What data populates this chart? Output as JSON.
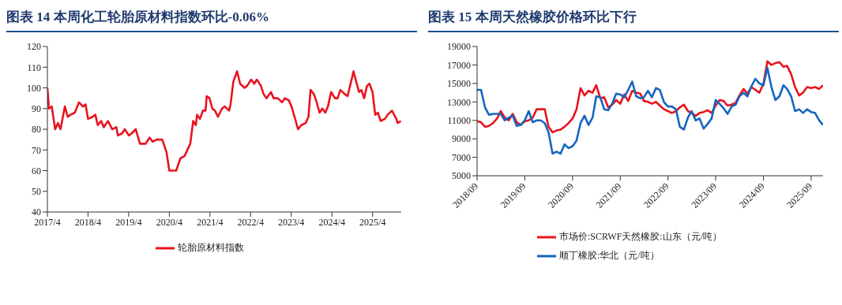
{
  "chart_data": [
    {
      "type": "line",
      "title": "图表 14   本周化工轮胎原材料指数环比-0.06%",
      "legend": "bottom",
      "xlim": [
        "2017-04-01",
        "2025-12-15"
      ],
      "xticks": [
        {
          "value": "2017-04-01",
          "label": "2017/4"
        },
        {
          "value": "2018-04-01",
          "label": "2018/4"
        },
        {
          "value": "2019-04-01",
          "label": "2019/4"
        },
        {
          "value": "2020-04-01",
          "label": "2020/4"
        },
        {
          "value": "2021-04-01",
          "label": "2021/4"
        },
        {
          "value": "2022-04-01",
          "label": "2022/4"
        },
        {
          "value": "2023-04-01",
          "label": "2023/4"
        },
        {
          "value": "2024-04-01",
          "label": "2024/4"
        },
        {
          "value": "2025-04-01",
          "label": "2025/4"
        }
      ],
      "ylim": [
        40,
        120
      ],
      "yticks": [
        40,
        50,
        60,
        70,
        80,
        90,
        100,
        110,
        120
      ],
      "series": [
        {
          "name": "轮胎原材料指数",
          "color": "#e8141e",
          "x": [
            "2017-04-01",
            "2017-04-15",
            "2017-05-10",
            "2017-06-10",
            "2017-07-05",
            "2017-07-28",
            "2017-09-05",
            "2017-10-01",
            "2017-10-25",
            "2017-12-03",
            "2018-01-10",
            "2018-02-15",
            "2018-03-10",
            "2018-04-01",
            "2018-05-12",
            "2018-06-06",
            "2018-06-28",
            "2018-07-28",
            "2018-08-21",
            "2018-09-28",
            "2018-11-04",
            "2018-12-12",
            "2018-12-25",
            "2019-02-01",
            "2019-02-25",
            "2019-04-03",
            "2019-04-28",
            "2019-06-04",
            "2019-07-12",
            "2019-09-01",
            "2019-10-06",
            "2019-11-02",
            "2019-12-10",
            "2020-01-28",
            "2020-03-06",
            "2020-04-01",
            "2020-06-01",
            "2020-07-10",
            "2020-08-15",
            "2020-10-06",
            "2020-11-01",
            "2020-11-25",
            "2020-12-06",
            "2021-01-01",
            "2021-01-28",
            "2021-02-20",
            "2021-03-03",
            "2021-03-28",
            "2021-04-22",
            "2021-05-16",
            "2021-06-12",
            "2021-07-18",
            "2021-08-12",
            "2021-09-20",
            "2021-10-03",
            "2021-10-28",
            "2021-12-01",
            "2021-12-28",
            "2022-02-06",
            "2022-03-01",
            "2022-04-06",
            "2022-05-03",
            "2022-05-27",
            "2022-07-03",
            "2022-07-27",
            "2022-08-22",
            "2022-10-01",
            "2022-10-25",
            "2022-12-01",
            "2023-01-09",
            "2023-02-03",
            "2023-03-10",
            "2023-04-04",
            "2023-05-12",
            "2023-06-01",
            "2023-07-01",
            "2023-08-09",
            "2023-09-03",
            "2023-09-22",
            "2023-10-22",
            "2023-11-16",
            "2023-12-12",
            "2024-01-06",
            "2024-02-01",
            "2024-02-25",
            "2024-03-25",
            "2024-04-28",
            "2024-05-22",
            "2024-06-16",
            "2024-07-25",
            "2024-08-19",
            "2024-09-25",
            "2024-10-12",
            "2024-11-15",
            "2024-12-01",
            "2024-12-22",
            "2025-01-16",
            "2025-02-10",
            "2025-03-04",
            "2025-04-01",
            "2025-04-25",
            "2025-05-19",
            "2025-06-13",
            "2025-07-21",
            "2025-08-15",
            "2025-09-22",
            "2025-11-01",
            "2025-11-12",
            "2025-12-12"
          ],
          "values": [
            100,
            90,
            91,
            80,
            83,
            80,
            91,
            86,
            87,
            88,
            93,
            91,
            92,
            85,
            86,
            87,
            82,
            84,
            81,
            84,
            80,
            81,
            77,
            78,
            80,
            77,
            78,
            80,
            73,
            73,
            76,
            74,
            75,
            75,
            69,
            60,
            60,
            66,
            67,
            73,
            84,
            82,
            87,
            85,
            89,
            89,
            96,
            95,
            90,
            89,
            86,
            90,
            91,
            89,
            92,
            103,
            108,
            102,
            100,
            101,
            104,
            102,
            104,
            101,
            97,
            95,
            98,
            95,
            95,
            93,
            95,
            94,
            91,
            84,
            80,
            82,
            83,
            86,
            99,
            97,
            93,
            88,
            90,
            88,
            91,
            98,
            95,
            95,
            99,
            97,
            96,
            104,
            108,
            101,
            98,
            99,
            95,
            101,
            102,
            98,
            87,
            88,
            84,
            85,
            87,
            89,
            85,
            83,
            84
          ]
        }
      ]
    },
    {
      "type": "line",
      "title": "图表 15   本周天然橡胶价格环比下行",
      "legend": "bottom",
      "x": [
        "2018-09",
        "2018-10",
        "2018-11",
        "2018-12",
        "2019-01",
        "2019-02",
        "2019-03",
        "2019-04",
        "2019-05",
        "2019-06",
        "2019-07",
        "2019-08",
        "2019-09",
        "2019-10",
        "2019-11",
        "2019-12",
        "2020-01",
        "2020-02",
        "2020-03",
        "2020-04",
        "2020-05",
        "2020-06",
        "2020-07",
        "2020-08",
        "2020-09",
        "2020-10",
        "2020-11",
        "2020-12",
        "2021-01",
        "2021-02",
        "2021-03",
        "2021-04",
        "2021-05",
        "2021-06",
        "2021-07",
        "2021-08",
        "2021-09",
        "2021-10",
        "2021-11",
        "2021-12",
        "2022-01",
        "2022-02",
        "2022-03",
        "2022-04",
        "2022-05",
        "2022-06",
        "2022-07",
        "2022-08",
        "2022-09",
        "2022-10",
        "2022-11",
        "2022-12",
        "2023-01",
        "2023-02",
        "2023-03",
        "2023-04",
        "2023-05",
        "2023-06",
        "2023-07",
        "2023-08",
        "2023-09",
        "2023-10",
        "2023-11",
        "2023-12",
        "2024-01",
        "2024-02",
        "2024-03",
        "2024-04",
        "2024-05",
        "2024-06",
        "2024-07",
        "2024-08",
        "2024-09",
        "2024-10",
        "2024-11",
        "2024-12",
        "2025-01",
        "2025-02",
        "2025-03",
        "2025-04",
        "2025-05",
        "2025-06",
        "2025-07",
        "2025-08",
        "2025-09",
        "2025-10",
        "2025-11",
        "2025-12"
      ],
      "xlim": [
        "2018-09",
        "2025-12"
      ],
      "xticks": [
        {
          "value": "2018-09",
          "label": "2018/09"
        },
        {
          "value": "2019-09",
          "label": "2019/09"
        },
        {
          "value": "2020-09",
          "label": "2020/09"
        },
        {
          "value": "2021-09",
          "label": "2021/09"
        },
        {
          "value": "2022-09",
          "label": "2022/09"
        },
        {
          "value": "2023-09",
          "label": "2023/09"
        },
        {
          "value": "2024-09",
          "label": "2024/09"
        },
        {
          "value": "2025-09",
          "label": "2025/09"
        }
      ],
      "ylim": [
        5000,
        19000
      ],
      "yticks": [
        5000,
        7000,
        9000,
        11000,
        13000,
        15000,
        17000,
        19000
      ],
      "series": [
        {
          "name": "市场价:SCRWF天然橡胶:山东（元/吨）",
          "color": "#e8141e",
          "values": [
            10900,
            10800,
            10300,
            10400,
            10700,
            11200,
            12000,
            11300,
            11000,
            11700,
            10800,
            10500,
            10900,
            11000,
            11300,
            12200,
            12200,
            12200,
            10300,
            9700,
            9900,
            10000,
            10300,
            10700,
            11200,
            12200,
            14500,
            13700,
            14200,
            14000,
            14800,
            13400,
            13500,
            12400,
            12700,
            13200,
            12800,
            13800,
            13100,
            14200,
            14000,
            13900,
            13100,
            13000,
            12800,
            13000,
            12600,
            12200,
            12000,
            11800,
            12000,
            12400,
            12700,
            12000,
            11800,
            11500,
            11800,
            11900,
            12100,
            11800,
            12600,
            13200,
            13100,
            12600,
            12700,
            12900,
            13700,
            14400,
            13900,
            14600,
            14300,
            14000,
            15000,
            17400,
            17000,
            17200,
            17300,
            16800,
            16900,
            16000,
            14600,
            13700,
            14000,
            14600,
            14500,
            14600,
            14400,
            14800
          ]
        },
        {
          "name": "顺丁橡胶:华北（元/吨）",
          "color": "#1565c0",
          "values": [
            14300,
            14300,
            12400,
            11600,
            11700,
            11700,
            11700,
            11000,
            11300,
            11500,
            10400,
            10500,
            11000,
            12000,
            10800,
            11000,
            11000,
            10700,
            9700,
            7400,
            7600,
            7400,
            8400,
            8000,
            8200,
            8800,
            10700,
            11500,
            10500,
            11300,
            13600,
            13500,
            12200,
            12100,
            12800,
            13900,
            13800,
            13500,
            14300,
            15200,
            13600,
            13400,
            13500,
            14200,
            13500,
            14500,
            14300,
            13000,
            12500,
            12500,
            12200,
            10300,
            10000,
            11300,
            12000,
            11000,
            11200,
            10100,
            10600,
            11200,
            13200,
            12800,
            12300,
            11700,
            12500,
            12700,
            13600,
            14000,
            13600,
            14700,
            15500,
            15000,
            14800,
            16700,
            14600,
            13200,
            13600,
            14800,
            14400,
            13600,
            12000,
            12200,
            11800,
            12200,
            11900,
            11800,
            11000,
            10500
          ]
        }
      ]
    }
  ]
}
